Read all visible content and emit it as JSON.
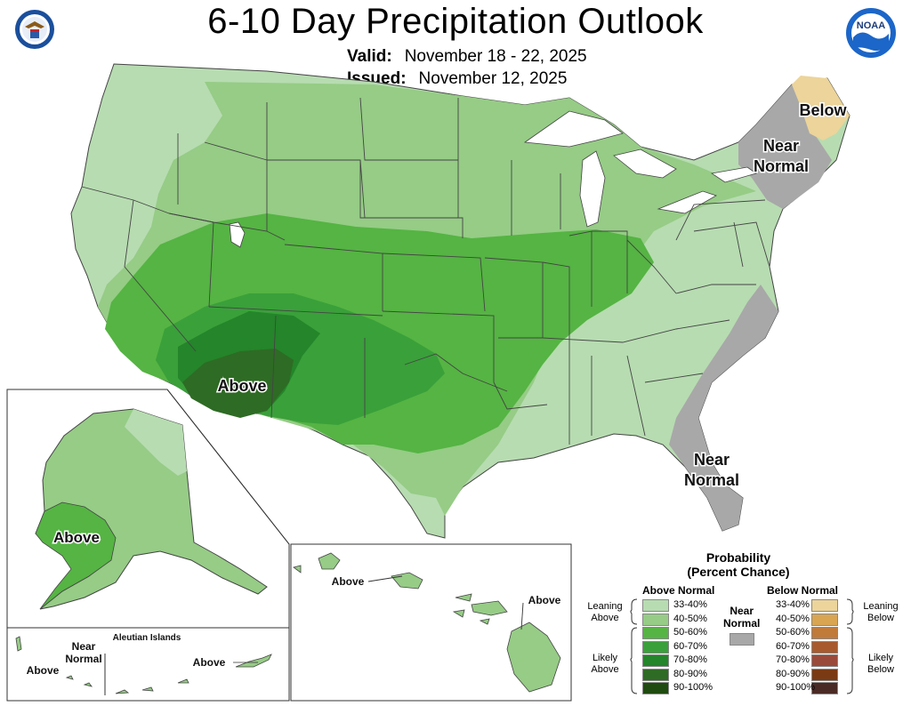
{
  "title": "6-10 Day Precipitation Outlook",
  "valid": {
    "label": "Valid:",
    "value": "November 18 - 22, 2025"
  },
  "issued": {
    "label": "Issued:",
    "value": "November 12, 2025"
  },
  "logos": {
    "left": "department-of-commerce-seal",
    "right": "noaa-logo",
    "noaa_text": "NOAA"
  },
  "map_labels": {
    "conus_above": "Above",
    "below_ne": "Below",
    "near_normal_ne": "Near Normal",
    "near_normal_se": "Near Normal",
    "alaska_above": "Above",
    "aleutian_title": "Aleutian Islands",
    "aleutian_near": "Near Normal",
    "aleutian_above_left": "Above",
    "aleutian_above_right": "Above",
    "hawaii_above_left": "Above",
    "hawaii_above_right": "Above"
  },
  "legend": {
    "title_line1": "Probability",
    "title_line2": "(Percent Chance)",
    "above_header": "Above Normal",
    "below_header": "Below Normal",
    "near_header_line1": "Near",
    "near_header_line2": "Normal",
    "near_color": "#a8a8a8",
    "leaning_above": "Leaning Above",
    "likely_above": "Likely Above",
    "leaning_below": "Leaning Below",
    "likely_below": "Likely Below",
    "above": [
      {
        "label": "33-40%",
        "color": "#b7dcb1"
      },
      {
        "label": "40-50%",
        "color": "#96cc86"
      },
      {
        "label": "50-60%",
        "color": "#55b443"
      },
      {
        "label": "60-70%",
        "color": "#3aa03a"
      },
      {
        "label": "70-80%",
        "color": "#24852a"
      },
      {
        "label": "80-90%",
        "color": "#2e6b24"
      },
      {
        "label": "90-100%",
        "color": "#1f4a10"
      }
    ],
    "below": [
      {
        "label": "33-40%",
        "color": "#ecd49a"
      },
      {
        "label": "40-50%",
        "color": "#d9a552"
      },
      {
        "label": "50-60%",
        "color": "#c07a3a"
      },
      {
        "label": "60-70%",
        "color": "#a85a2e"
      },
      {
        "label": "70-80%",
        "color": "#9a4a3a"
      },
      {
        "label": "80-90%",
        "color": "#7a3a14"
      },
      {
        "label": "90-100%",
        "color": "#4a2a24"
      }
    ]
  }
}
